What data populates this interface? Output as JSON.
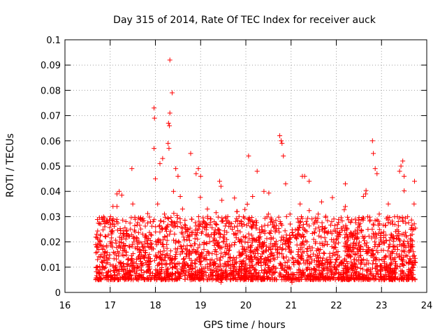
{
  "chart_data": {
    "type": "scatter",
    "title": "Day 315 of 2014, Rate Of TEC Index for receiver auck",
    "xlabel": "GPS time / hours",
    "ylabel": "ROTI / TECUs",
    "xlim": [
      16,
      24
    ],
    "ylim": [
      0,
      0.1
    ],
    "xticks": [
      "16",
      "17",
      "18",
      "19",
      "20",
      "21",
      "22",
      "23",
      "24"
    ],
    "yticks": [
      "0",
      "0.01",
      "0.02",
      "0.03",
      "0.04",
      "0.05",
      "0.06",
      "0.07",
      "0.08",
      "0.09",
      "0.1"
    ],
    "grid": true,
    "marker": "+",
    "marker_color": "#ff0000",
    "series": [
      {
        "name": "ROTI",
        "x_range": [
          16.68,
          23.75
        ],
        "typical_y_range": [
          0.005,
          0.03
        ],
        "points": [
          [
            18.32,
            0.092
          ],
          [
            18.37,
            0.079
          ],
          [
            17.97,
            0.073
          ],
          [
            18.32,
            0.071
          ],
          [
            17.98,
            0.069
          ],
          [
            18.29,
            0.067
          ],
          [
            18.31,
            0.066
          ],
          [
            20.75,
            0.062
          ],
          [
            20.78,
            0.06
          ],
          [
            22.8,
            0.06
          ],
          [
            18.28,
            0.059
          ],
          [
            20.8,
            0.059
          ],
          [
            17.97,
            0.057
          ],
          [
            18.3,
            0.057
          ],
          [
            18.78,
            0.055
          ],
          [
            22.82,
            0.055
          ],
          [
            20.06,
            0.054
          ],
          [
            20.83,
            0.054
          ],
          [
            18.16,
            0.053
          ],
          [
            23.47,
            0.052
          ],
          [
            18.1,
            0.051
          ],
          [
            23.43,
            0.05
          ],
          [
            17.48,
            0.049
          ],
          [
            18.45,
            0.049
          ],
          [
            18.95,
            0.049
          ],
          [
            22.86,
            0.049
          ],
          [
            20.25,
            0.048
          ],
          [
            23.4,
            0.048
          ],
          [
            22.9,
            0.047
          ],
          [
            18.5,
            0.046
          ],
          [
            21.25,
            0.046
          ],
          [
            21.3,
            0.046
          ],
          [
            23.5,
            0.046
          ],
          [
            19.42,
            0.044
          ],
          [
            23.73,
            0.044
          ],
          [
            21.4,
            0.044
          ],
          [
            22.2,
            0.043
          ],
          [
            17.15,
            0.039
          ],
          [
            17.2,
            0.04
          ],
          [
            19.45,
            0.042
          ],
          [
            20.88,
            0.043
          ],
          [
            18.0,
            0.045
          ],
          [
            18.4,
            0.04
          ],
          [
            18.9,
            0.047
          ],
          [
            19.0,
            0.046
          ],
          [
            18.55,
            0.038
          ],
          [
            22.6,
            0.038
          ],
          [
            22.65,
            0.039
          ],
          [
            17.15,
            0.034
          ],
          [
            20.4,
            0.04
          ],
          [
            22.2,
            0.034
          ],
          [
            17.5,
            0.035
          ],
          [
            16.85,
            0.028
          ],
          [
            16.88,
            0.026
          ],
          [
            16.78,
            0.02
          ],
          [
            16.75,
            0.017
          ],
          [
            16.72,
            0.013
          ],
          [
            16.7,
            0.01
          ],
          [
            16.8,
            0.015
          ],
          [
            16.82,
            0.009
          ],
          [
            16.9,
            0.022
          ],
          [
            16.95,
            0.008
          ],
          [
            17.0,
            0.011
          ],
          [
            17.05,
            0.018
          ],
          [
            17.1,
            0.007
          ],
          [
            17.2,
            0.012
          ],
          [
            17.25,
            0.021
          ],
          [
            17.3,
            0.009
          ],
          [
            17.35,
            0.016
          ],
          [
            17.4,
            0.013
          ],
          [
            17.45,
            0.008
          ],
          [
            17.55,
            0.024
          ],
          [
            17.6,
            0.01
          ],
          [
            17.65,
            0.017
          ],
          [
            17.7,
            0.007
          ],
          [
            17.75,
            0.014
          ],
          [
            17.8,
            0.022
          ],
          [
            17.85,
            0.011
          ],
          [
            17.9,
            0.019
          ],
          [
            17.95,
            0.028
          ],
          [
            18.05,
            0.035
          ],
          [
            18.15,
            0.025
          ],
          [
            18.2,
            0.031
          ],
          [
            18.25,
            0.019
          ],
          [
            18.35,
            0.027
          ],
          [
            18.45,
            0.015
          ],
          [
            18.6,
            0.033
          ],
          [
            18.65,
            0.012
          ],
          [
            18.7,
            0.024
          ],
          [
            18.75,
            0.009
          ],
          [
            18.8,
            0.029
          ],
          [
            18.85,
            0.017
          ],
          [
            19.05,
            0.026
          ],
          [
            19.1,
            0.013
          ],
          [
            19.15,
            0.033
          ],
          [
            19.2,
            0.02
          ],
          [
            19.25,
            0.008
          ],
          [
            19.3,
            0.028
          ],
          [
            19.35,
            0.015
          ],
          [
            19.4,
            0.005
          ],
          [
            19.45,
            0.004
          ],
          [
            19.5,
            0.022
          ],
          [
            19.55,
            0.011
          ],
          [
            19.6,
            0.03
          ],
          [
            19.65,
            0.018
          ],
          [
            19.7,
            0.025
          ],
          [
            19.75,
            0.01
          ],
          [
            19.8,
            0.032
          ],
          [
            19.85,
            0.016
          ],
          [
            19.9,
            0.02
          ],
          [
            19.95,
            0.012
          ],
          [
            20.0,
            0.022
          ],
          [
            20.1,
            0.014
          ],
          [
            20.15,
            0.038
          ],
          [
            20.2,
            0.009
          ],
          [
            20.3,
            0.019
          ],
          [
            20.35,
            0.026
          ],
          [
            20.45,
            0.013
          ],
          [
            20.5,
            0.031
          ],
          [
            20.55,
            0.017
          ],
          [
            20.6,
            0.01
          ],
          [
            20.65,
            0.024
          ],
          [
            20.7,
            0.014
          ],
          [
            20.85,
            0.009
          ],
          [
            20.9,
            0.03
          ],
          [
            20.95,
            0.02
          ],
          [
            21.0,
            0.005
          ],
          [
            21.02,
            0.004
          ],
          [
            21.05,
            0.012
          ],
          [
            21.1,
            0.022
          ],
          [
            21.15,
            0.015
          ],
          [
            21.2,
            0.035
          ],
          [
            21.35,
            0.027
          ],
          [
            21.45,
            0.012
          ],
          [
            21.5,
            0.021
          ],
          [
            21.55,
            0.009
          ],
          [
            21.6,
            0.031
          ],
          [
            21.65,
            0.017
          ],
          [
            21.7,
            0.025
          ],
          [
            21.75,
            0.011
          ],
          [
            21.8,
            0.019
          ],
          [
            21.85,
            0.014
          ],
          [
            21.9,
            0.028
          ],
          [
            21.95,
            0.01
          ],
          [
            22.0,
            0.016
          ],
          [
            22.05,
            0.022
          ],
          [
            22.1,
            0.012
          ],
          [
            22.15,
            0.026
          ],
          [
            22.25,
            0.009
          ],
          [
            22.3,
            0.018
          ],
          [
            22.35,
            0.011
          ],
          [
            22.4,
            0.021
          ],
          [
            22.45,
            0.008
          ],
          [
            22.5,
            0.014
          ],
          [
            22.55,
            0.013
          ],
          [
            22.7,
            0.016
          ],
          [
            22.75,
            0.009
          ],
          [
            22.85,
            0.02
          ],
          [
            22.95,
            0.031
          ],
          [
            23.0,
            0.01
          ],
          [
            23.05,
            0.024
          ],
          [
            23.1,
            0.014
          ],
          [
            23.15,
            0.035
          ],
          [
            23.2,
            0.011
          ],
          [
            23.25,
            0.027
          ],
          [
            23.3,
            0.017
          ],
          [
            23.35,
            0.03
          ],
          [
            23.45,
            0.013
          ],
          [
            23.55,
            0.022
          ],
          [
            23.6,
            0.009
          ],
          [
            23.65,
            0.025
          ],
          [
            23.7,
            0.007
          ],
          [
            23.72,
            0.035
          ],
          [
            23.74,
            0.012
          ]
        ]
      }
    ]
  }
}
